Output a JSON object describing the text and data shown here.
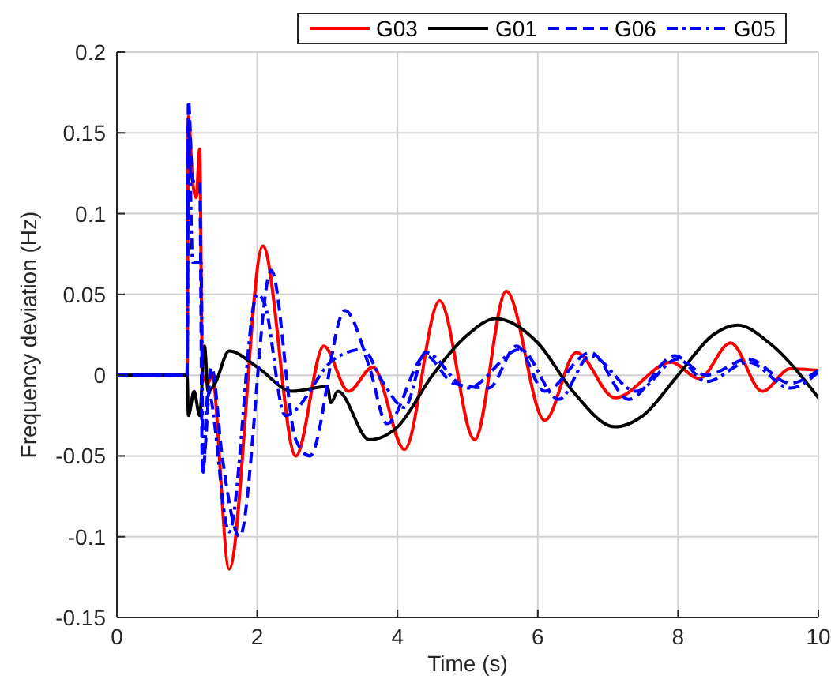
{
  "chart_data": {
    "type": "line",
    "xlabel": "Time (s)",
    "ylabel": "Frequency deviation (Hz)",
    "xlim": [
      0,
      10
    ],
    "xticks": [
      0,
      2,
      4,
      6,
      8,
      10
    ],
    "ylim": [
      -0.15,
      0.2
    ],
    "yticks": [
      -0.15,
      -0.1,
      -0.05,
      0,
      0.05,
      0.1,
      0.15,
      0.2
    ],
    "grid": true,
    "legend": "top",
    "marker": "none",
    "series": [
      {
        "name": "G03",
        "color": "#ff0000",
        "line_style": "solid",
        "x": [
          0,
          1,
          1.02,
          1.08,
          1.13,
          1.18,
          1.22,
          1.3,
          1.35,
          1.6,
          2.08,
          2.55,
          2.95,
          3.3,
          3.65,
          4.1,
          4.6,
          5.1,
          5.55,
          6.1,
          6.55,
          7.1,
          7.9,
          8.3,
          8.75,
          9.2,
          9.6,
          10
        ],
        "values": [
          0,
          0,
          0.16,
          0.12,
          0.11,
          0.14,
          0,
          -0.005,
          0,
          -0.12,
          0.08,
          -0.05,
          0.018,
          -0.01,
          0.005,
          -0.046,
          0.046,
          -0.04,
          0.052,
          -0.028,
          0.014,
          -0.014,
          0.008,
          -0.002,
          0.02,
          -0.01,
          0.004,
          0.003
        ]
      },
      {
        "name": "G01",
        "color": "#000000",
        "line_style": "solid",
        "x": [
          0,
          1,
          1.02,
          1.1,
          1.18,
          1.25,
          1.3,
          1.4,
          1.6,
          2,
          2.5,
          3,
          3.05,
          3.15,
          3.6,
          4,
          4.5,
          5,
          5.4,
          6,
          6.5,
          7.1,
          7.5,
          8,
          8.5,
          8.85,
          9.3,
          10
        ],
        "values": [
          0,
          0,
          -0.025,
          -0.01,
          -0.025,
          0.018,
          -0.01,
          -0.005,
          0.015,
          0.005,
          -0.01,
          -0.007,
          -0.017,
          -0.01,
          -0.04,
          -0.032,
          0,
          0.025,
          0.035,
          0.02,
          -0.01,
          -0.032,
          -0.025,
          0,
          0.025,
          0.031,
          0.02,
          -0.014
        ]
      },
      {
        "name": "G06",
        "color": "#0000ff",
        "line_style": "dashed",
        "x": [
          0,
          1,
          1.02,
          1.08,
          1.18,
          1.22,
          1.35,
          1.5,
          1.75,
          2.2,
          2.55,
          2.75,
          3.25,
          3.6,
          3.85,
          4.4,
          4.8,
          5.3,
          5.7,
          6.1,
          6.75,
          7.3,
          7.95,
          8.4,
          9,
          9.6,
          10
        ],
        "values": [
          0,
          0,
          0.17,
          0.12,
          0.12,
          -0.06,
          0.005,
          -0.05,
          -0.1,
          0.065,
          -0.04,
          -0.05,
          0.04,
          0.005,
          -0.03,
          0.012,
          -0.005,
          -0.008,
          0.018,
          -0.01,
          0.014,
          -0.015,
          0.012,
          0,
          0.01,
          -0.005,
          0.003
        ]
      },
      {
        "name": "G05",
        "color": "#0000ff",
        "line_style": "dashdot",
        "x": [
          0,
          1,
          1.02,
          1.08,
          1.15,
          1.2,
          1.23,
          1.3,
          1.6,
          2,
          2.1,
          2.4,
          3.1,
          3.5,
          3.8,
          4.1,
          4.4,
          5,
          5.75,
          6.3,
          6.75,
          7.4,
          8,
          8.4,
          9,
          9.6,
          10
        ],
        "values": [
          0,
          0,
          0.16,
          0.07,
          0.07,
          0.07,
          -0.06,
          -0.01,
          -0.097,
          0.05,
          0.045,
          -0.025,
          0.01,
          0.016,
          -0.005,
          -0.02,
          0.014,
          -0.008,
          0.016,
          -0.015,
          0.012,
          -0.01,
          0.01,
          -0.004,
          0.008,
          -0.008,
          0.002
        ]
      }
    ]
  }
}
